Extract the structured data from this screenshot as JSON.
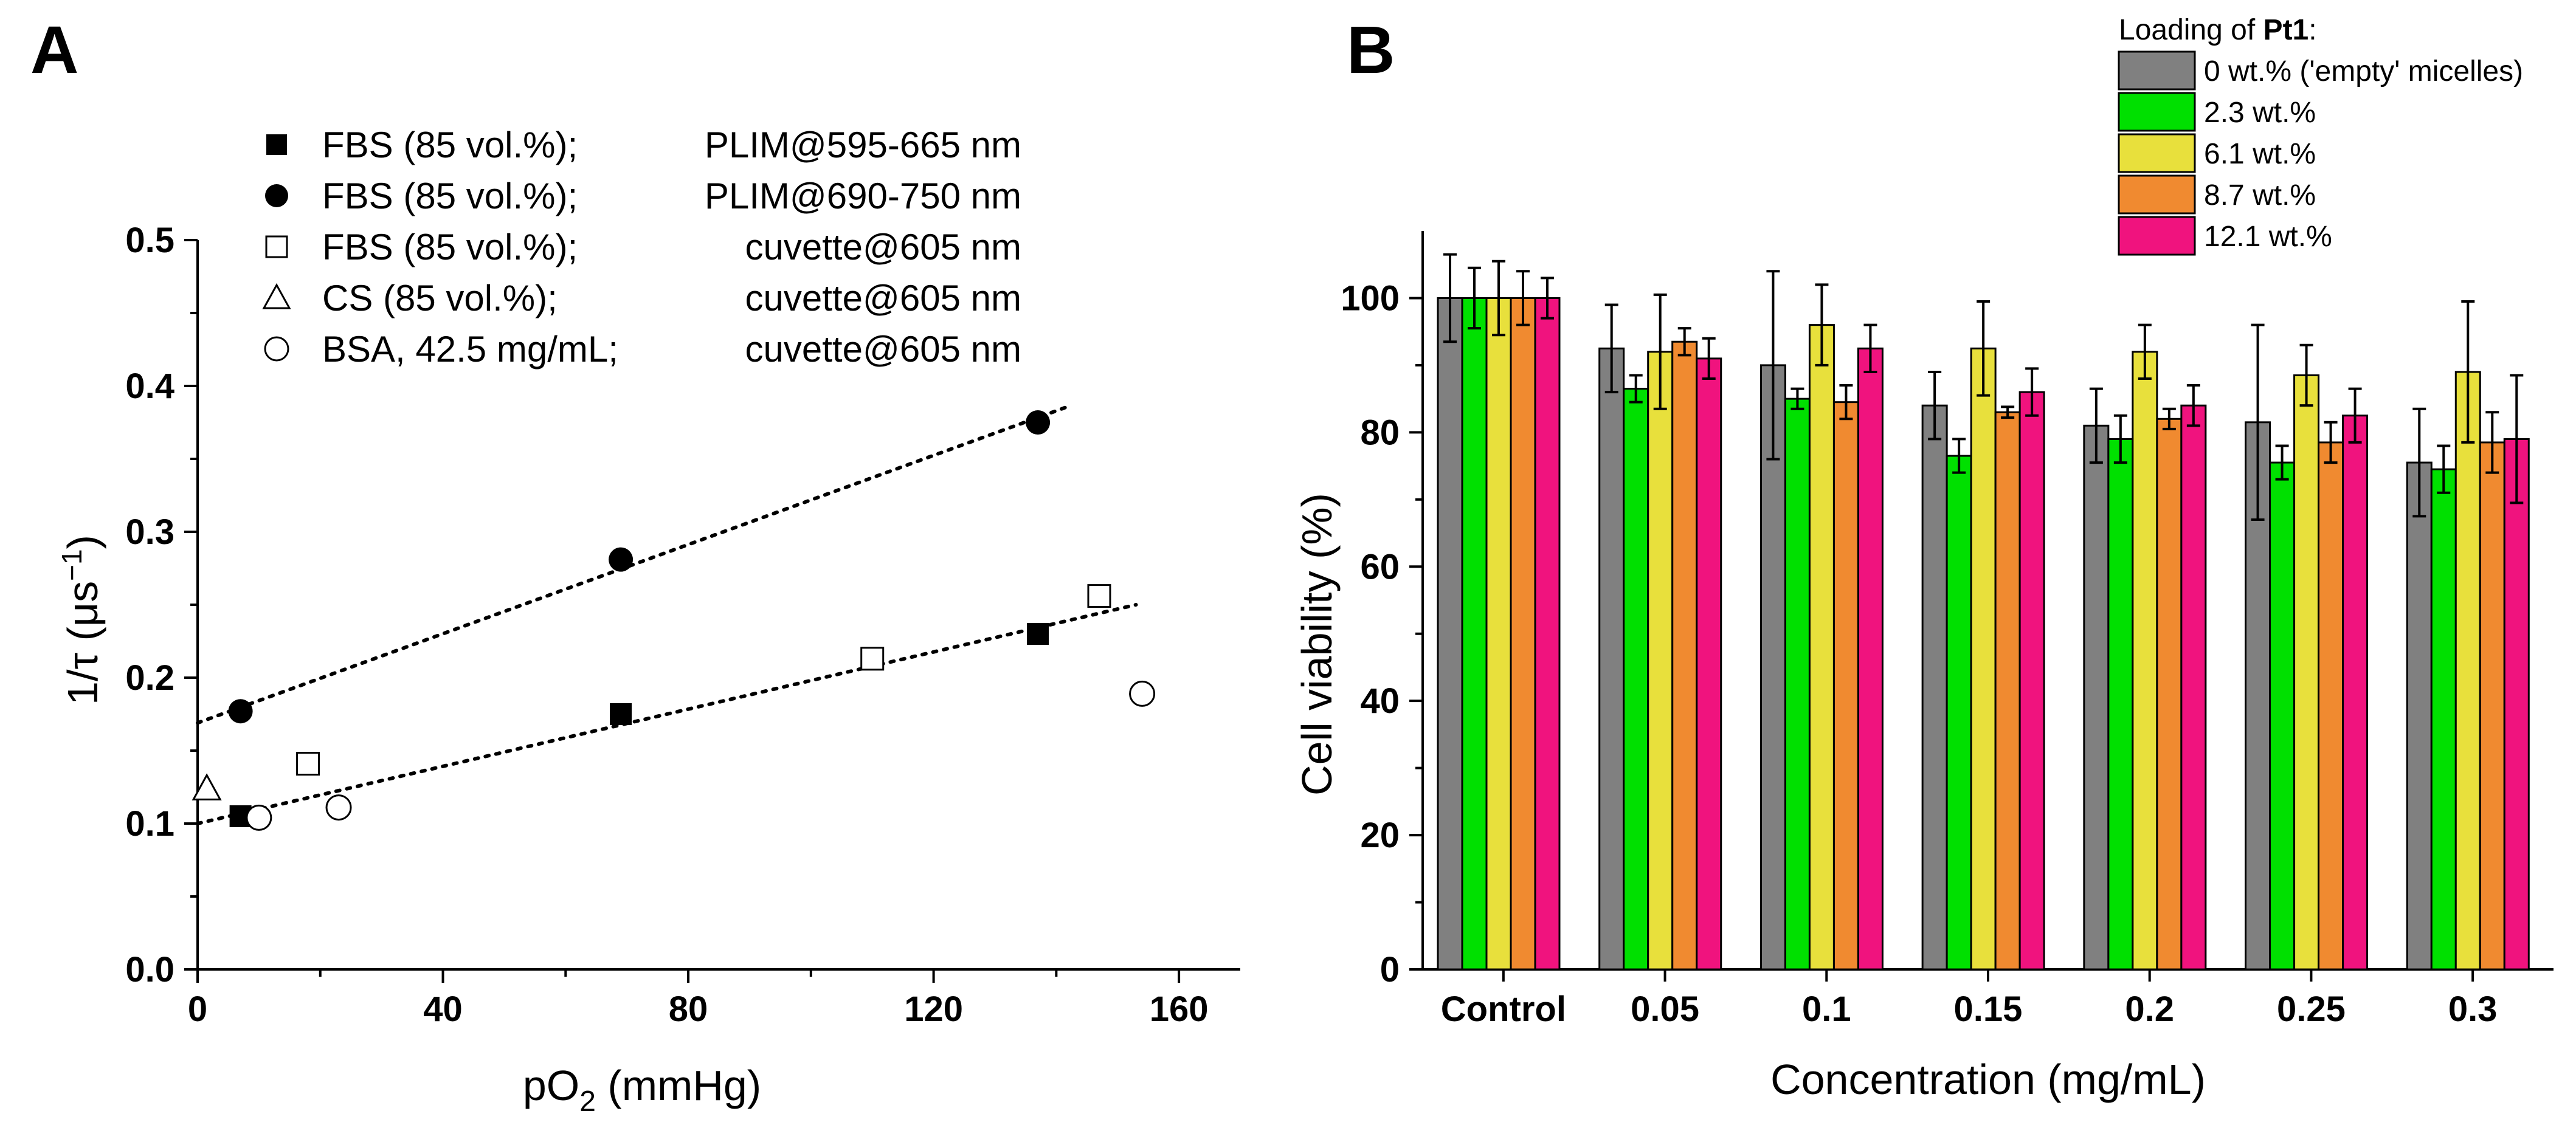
{
  "chart_data": [
    {
      "panel_label": "A",
      "type": "scatter",
      "xlabel": "pO",
      "xlabel_sub": "2",
      "xlabel_unit": " (mmHg)",
      "ylabel": "1/τ (μs",
      "ylabel_sup": "−1",
      "ylabel_end": ")",
      "xlim": [
        0,
        170
      ],
      "ylim": [
        0,
        0.5
      ],
      "xticks": [
        0,
        40,
        80,
        120,
        160
      ],
      "xtick_labels": [
        "0",
        "40",
        "80",
        "120",
        "160"
      ],
      "yticks": [
        0,
        0.1,
        0.2,
        0.3,
        0.4,
        0.5
      ],
      "ytick_labels": [
        "0.0",
        "0.1",
        "0.2",
        "0.3",
        "0.4",
        "0.5"
      ],
      "legend_position": "top",
      "series": [
        {
          "name": "FBS (85 vol.%);",
          "method": "PLIM@595-665 nm",
          "marker": "filled-square",
          "x": [
            7,
            69,
            137
          ],
          "y": [
            0.105,
            0.175,
            0.23
          ]
        },
        {
          "name": "FBS (85 vol.%);",
          "method": "PLIM@690-750 nm",
          "marker": "filled-circle",
          "x": [
            7,
            69,
            137
          ],
          "y": [
            0.177,
            0.281,
            0.375
          ]
        },
        {
          "name": "FBS (85 vol.%);",
          "method": "cuvette@605 nm",
          "marker": "open-square",
          "x": [
            18,
            110,
            147
          ],
          "y": [
            0.141,
            0.213,
            0.256
          ]
        },
        {
          "name": "CS (85 vol.%);",
          "method": "cuvette@605 nm",
          "marker": "open-triangle",
          "x": [
            1.5
          ],
          "y": [
            0.124
          ]
        },
        {
          "name": "BSA, 42.5 mg/mL;",
          "method": "cuvette@605 nm",
          "marker": "open-circle",
          "x": [
            10,
            23,
            154
          ],
          "y": [
            0.104,
            0.111,
            0.189
          ]
        }
      ],
      "fit_lines": [
        {
          "name": "fit-690-750",
          "x": [
            0,
            142
          ],
          "y": [
            0.169,
            0.386
          ]
        },
        {
          "name": "fit-595-665",
          "x": [
            0,
            153
          ],
          "y": [
            0.1,
            0.25
          ]
        }
      ]
    },
    {
      "panel_label": "B",
      "type": "bar",
      "xlabel": "Concentration (mg/mL)",
      "ylabel": "Cell viability (%)",
      "ylim": [
        0,
        110
      ],
      "yticks": [
        0,
        20,
        40,
        60,
        80,
        100
      ],
      "categories": [
        "Control",
        "0.05",
        "0.1",
        "0.15",
        "0.2",
        "0.25",
        "0.3"
      ],
      "legend_title": "Loading of ",
      "legend_title_bold": "Pt1",
      "legend_title_end": ":",
      "legend_position": "top-right",
      "series": [
        {
          "name": "0 wt.% ('empty' micelles)",
          "color": "#808080",
          "values": [
            100,
            92.5,
            90,
            84,
            81,
            81.5,
            75.5
          ],
          "errors": [
            6.5,
            6.5,
            14,
            5,
            5.5,
            14.5,
            8
          ]
        },
        {
          "name": "2.3 wt.%",
          "color": "#00e000",
          "values": [
            100,
            86.5,
            85,
            76.5,
            79,
            75.5,
            74.5
          ],
          "errors": [
            4.5,
            2,
            1.5,
            2.5,
            3.5,
            2.5,
            3.5
          ]
        },
        {
          "name": "6.1 wt.%",
          "color": "#e8e03c",
          "values": [
            100,
            92,
            96,
            92.5,
            92,
            88.5,
            89
          ],
          "errors": [
            5.5,
            8.5,
            6,
            7,
            4,
            4.5,
            10.5
          ]
        },
        {
          "name": "8.7 wt.%",
          "color": "#f08a30",
          "values": [
            100,
            93.5,
            84.5,
            83,
            82,
            78.5,
            78.5
          ],
          "errors": [
            4,
            2,
            2.5,
            0.8,
            1.5,
            3,
            4.5
          ]
        },
        {
          "name": "12.1 wt.%",
          "color": "#f0137e",
          "values": [
            100,
            91,
            92.5,
            86,
            84,
            82.5,
            79
          ],
          "errors": [
            3,
            3,
            3.5,
            3.5,
            3,
            4,
            9.5
          ]
        }
      ]
    }
  ]
}
